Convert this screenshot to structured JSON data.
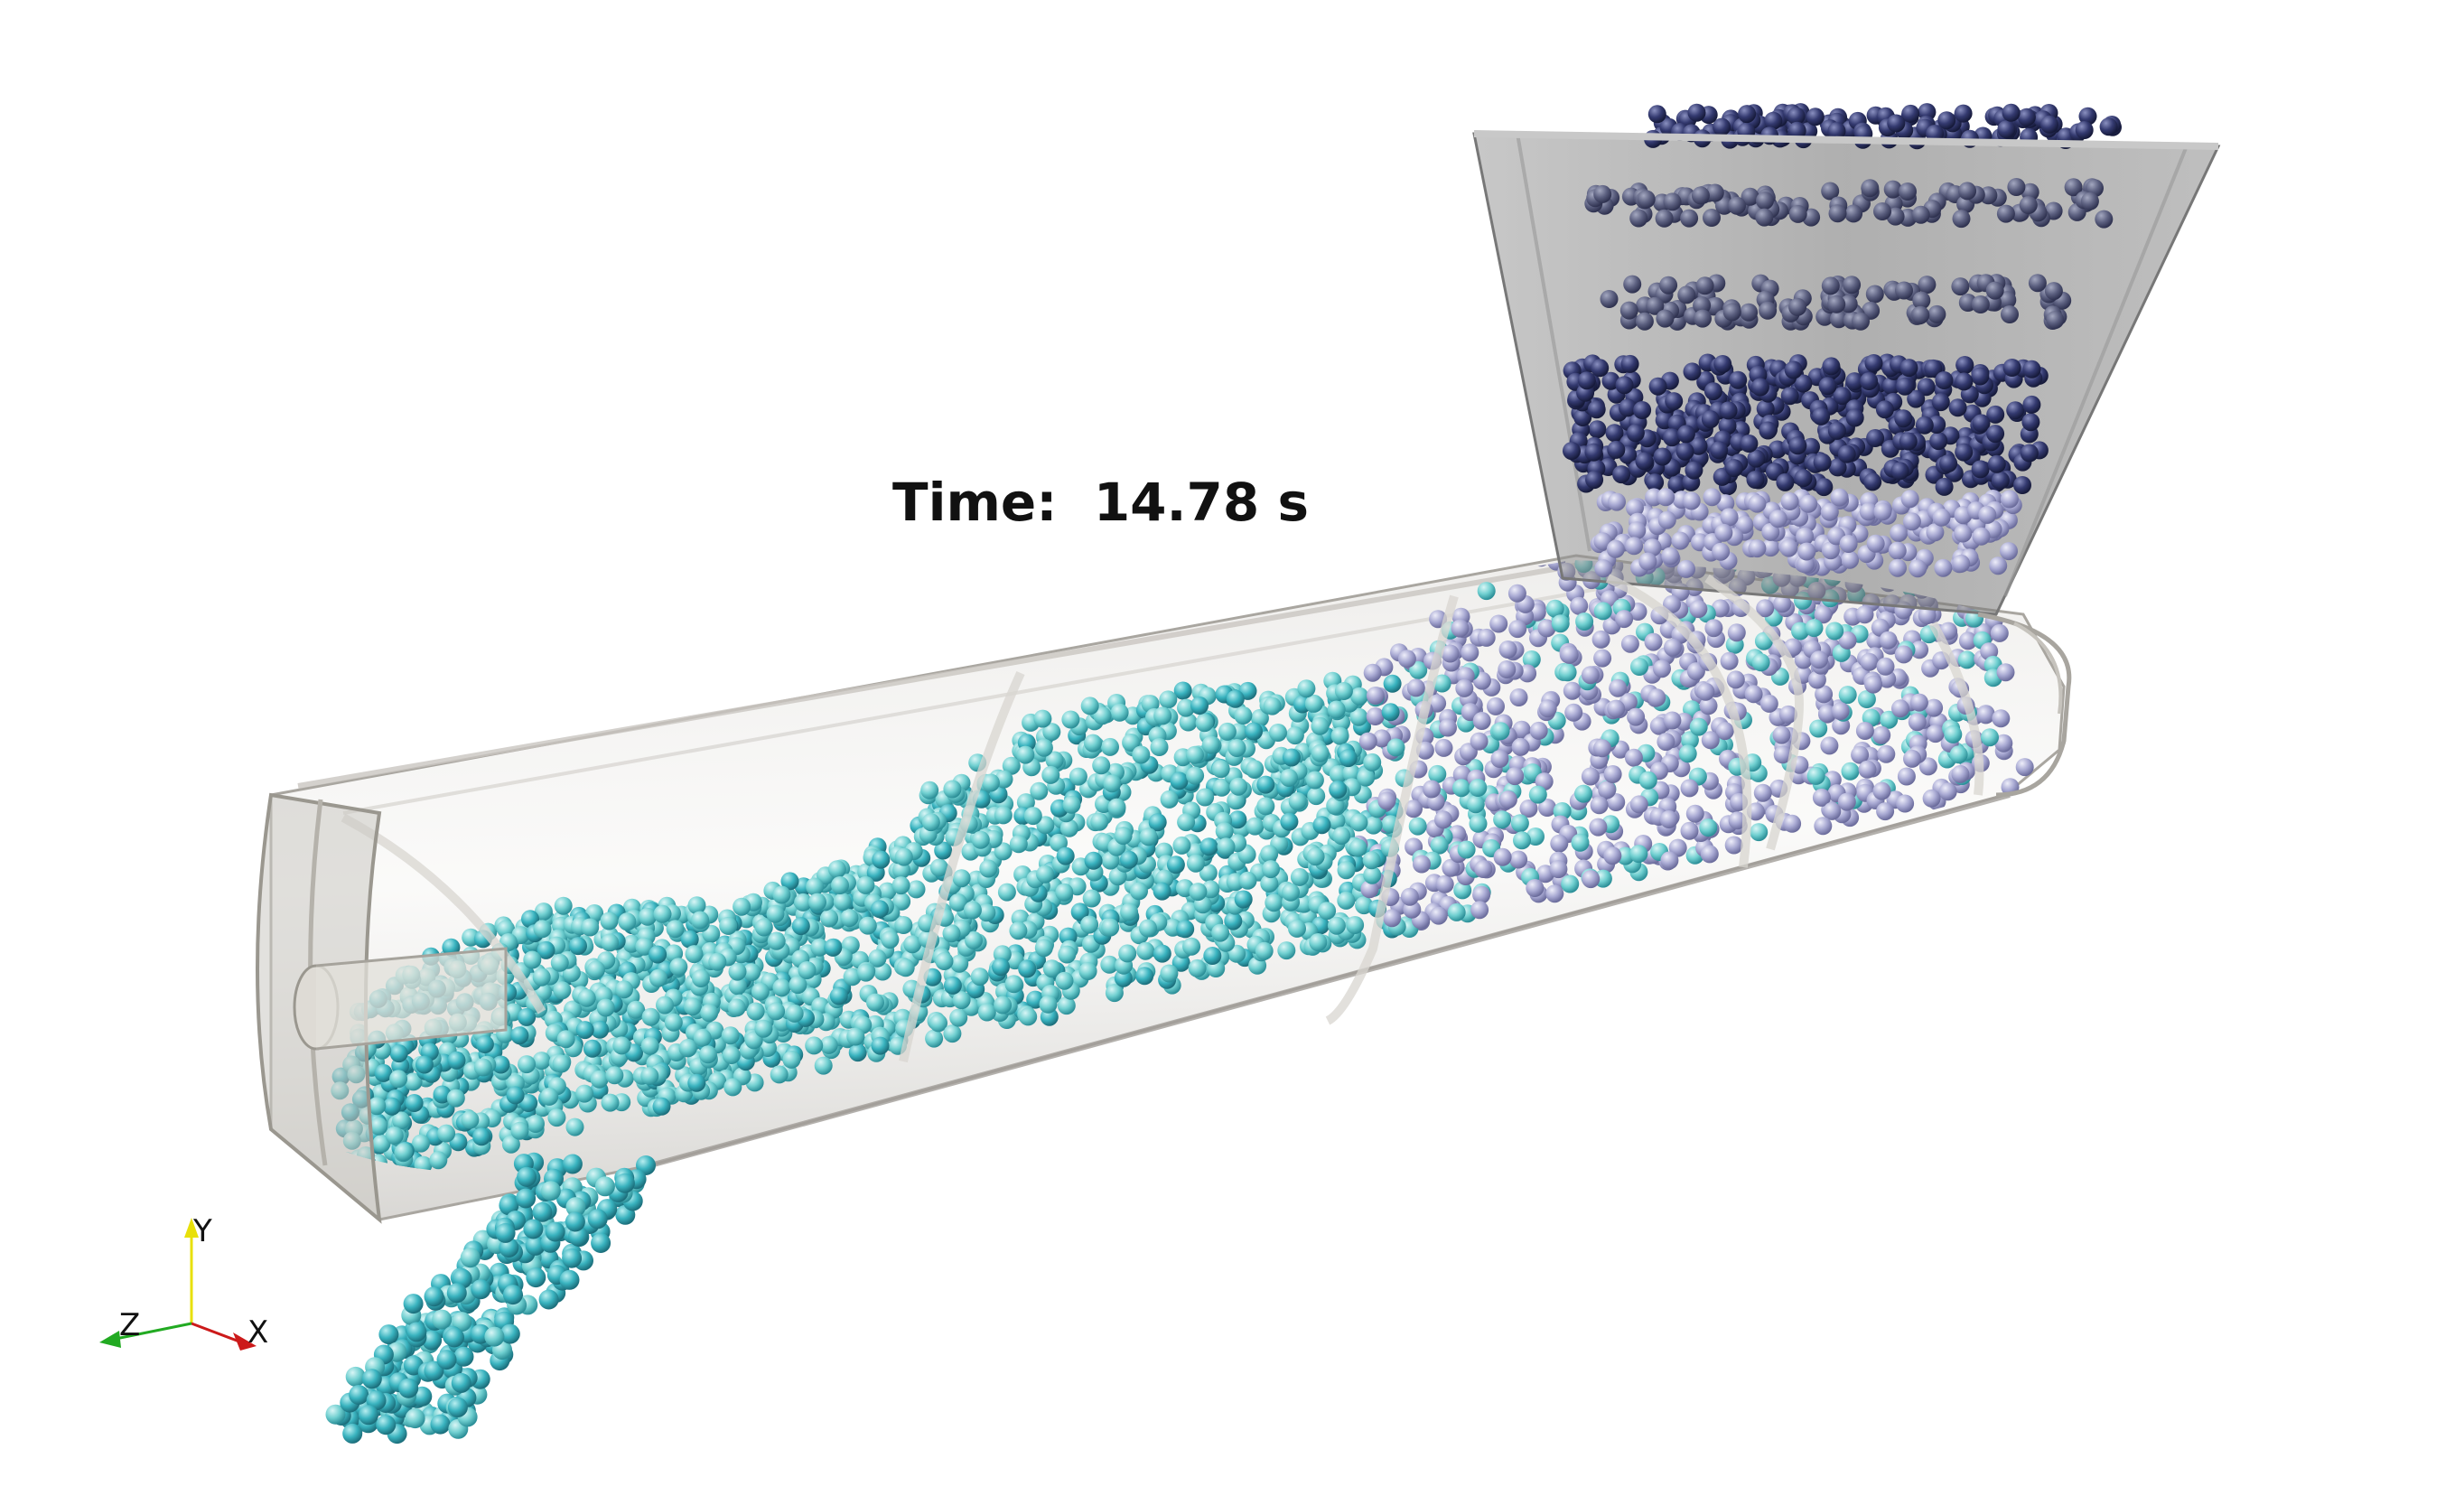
{
  "time_readout": {
    "label": "Time:",
    "value": "14.78",
    "unit": "s"
  },
  "orientation_axes": {
    "x_label": "X",
    "y_label": "Y",
    "z_label": "Z",
    "x_color": "#cc1a1a",
    "y_color": "#e8e00a",
    "z_color": "#22aa22"
  },
  "colors": {
    "background": "#ffffff",
    "casing": "#bdbab4",
    "hopper": "#8c8c8c",
    "particles_cyan": "#5cc8c8",
    "particles_teal": "#3aa5b5",
    "particles_lavender": "#9a9ac8",
    "particles_navy": "#2c3060"
  },
  "icons": {
    "triad": "axes-triad-icon"
  }
}
